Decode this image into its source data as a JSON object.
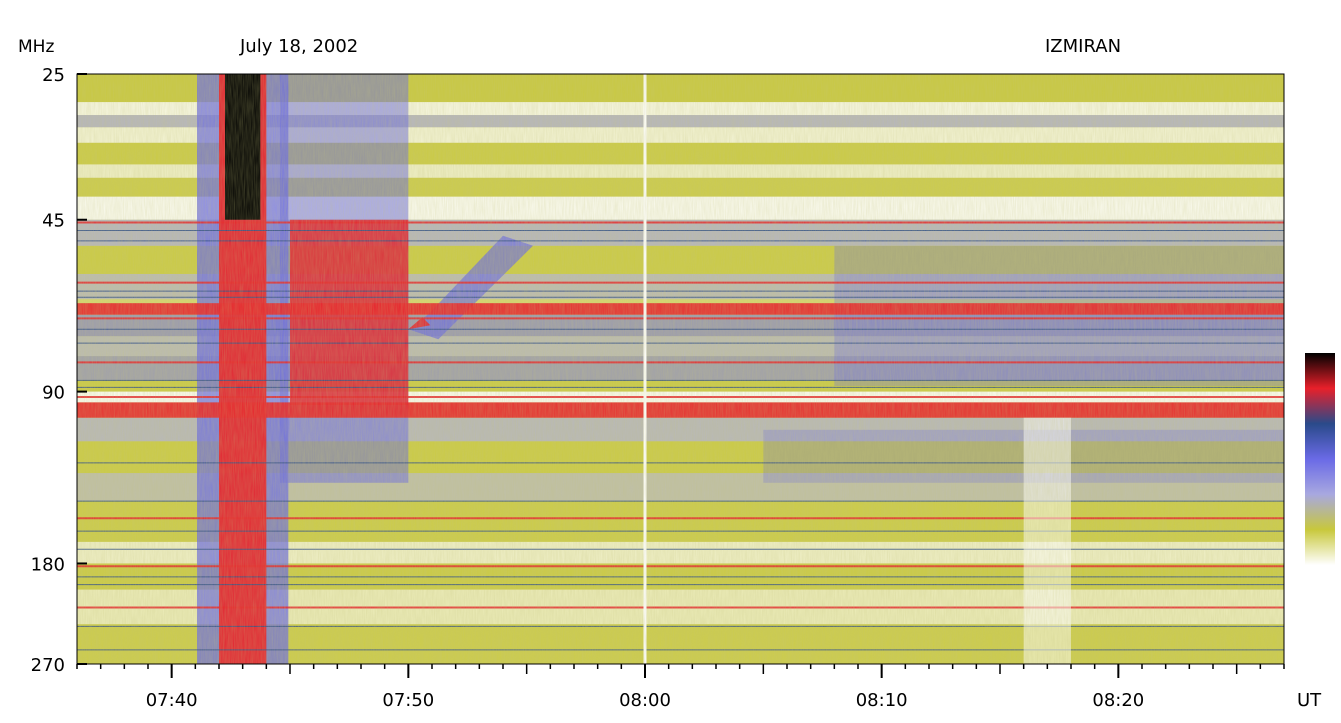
{
  "chart_data": {
    "type": "heatmap",
    "title": "July 18, 2002",
    "observatory": "IZMIRAN",
    "ylabel": "MHz",
    "xlabel": "UT",
    "y_scale": "log",
    "y_reversed": true,
    "ylim": [
      25,
      270
    ],
    "y_ticks": [
      {
        "value": 25,
        "label": "25"
      },
      {
        "value": 45,
        "label": "45"
      },
      {
        "value": 90,
        "label": "90"
      },
      {
        "value": 180,
        "label": "180"
      },
      {
        "value": 270,
        "label": "270"
      }
    ],
    "xlim": [
      "07:36",
      "08:27"
    ],
    "x_ticks": [
      {
        "value": "07:40",
        "label": "07:40"
      },
      {
        "value": "07:50",
        "label": "07:50"
      },
      {
        "value": "08:00",
        "label": "08:00"
      },
      {
        "value": "08:10",
        "label": "08:10"
      },
      {
        "value": "08:20",
        "label": "08:20"
      }
    ],
    "x_minor_tick_minutes": 1,
    "colormap": [
      "#ffffff",
      "#c8c83c",
      "#a8a8e0",
      "#6a6ae6",
      "#2a4a8a",
      "#e8202a",
      "#000000"
    ],
    "features": [
      {
        "kind": "broadband burst",
        "start": "07:42",
        "end": "07:44",
        "fmin": 25,
        "fmax": 270
      },
      {
        "kind": "burst cluster",
        "start": "07:45",
        "end": "07:50",
        "fmin": 25,
        "fmax": 130
      },
      {
        "kind": "drifting emission",
        "start": "07:50",
        "end": "07:54",
        "fmin": 48,
        "fmax": 70
      },
      {
        "kind": "interference band",
        "start": "07:36",
        "end": "08:27",
        "fmin": 94,
        "fmax": 100
      },
      {
        "kind": "interference band",
        "start": "07:36",
        "end": "08:27",
        "fmin": 63,
        "fmax": 66
      }
    ],
    "grid": false,
    "legend": "colorbar right"
  }
}
